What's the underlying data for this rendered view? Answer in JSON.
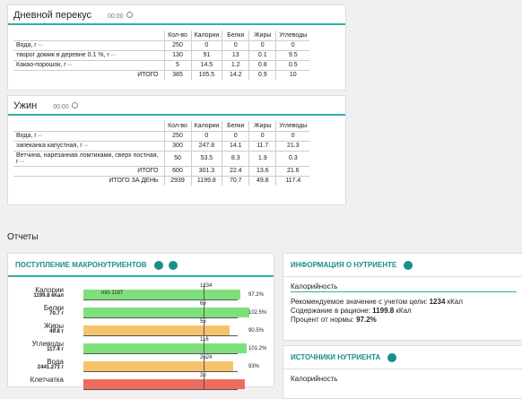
{
  "meals": [
    {
      "title": "Дневной перекус",
      "time": "00:00",
      "headers": [
        "Кол-во",
        "Калории",
        "Белки",
        "Жиры",
        "Углеводы"
      ],
      "rows": [
        [
          "Вода, г",
          250,
          0,
          0,
          0,
          0
        ],
        [
          "творог домик в деревне 0.1 %, г",
          130,
          91,
          13,
          0.1,
          9.5
        ],
        [
          "Какао-порошок, г",
          5,
          14.5,
          1.2,
          0.8,
          0.5
        ]
      ],
      "totals": [
        [
          "ИТОГО",
          385,
          105.5,
          14.2,
          0.9,
          10
        ]
      ]
    },
    {
      "title": "Ужин",
      "time": "00:00",
      "headers": [
        "Кол-во",
        "Калории",
        "Белки",
        "Жиры",
        "Углеводы"
      ],
      "rows": [
        [
          "Вода, г",
          250,
          0,
          0,
          0,
          0
        ],
        [
          "запеканка капустная, г",
          300,
          247.8,
          14.1,
          11.7,
          21.3
        ],
        [
          "Ветчина, нарезанная ломтиками, сверх постная, г",
          50,
          53.5,
          8.3,
          1.9,
          0.3
        ]
      ],
      "totals": [
        [
          "ИТОГО",
          600,
          301.3,
          22.4,
          13.6,
          21.6
        ],
        [
          "ИТОГО ЗА ДЕНЬ",
          2939,
          1199.8,
          70.7,
          49.8,
          117.4
        ]
      ]
    }
  ],
  "reports": {
    "title": "Отчеты",
    "macro": {
      "title": "ПОСТУПЛЕНИЕ МАКРОНУТРИЕНТОВ",
      "rows": [
        {
          "name": "Калории",
          "amount": "1199.8 кКал",
          "bar_label": "min 1187",
          "target": "1234",
          "percent": 97.2,
          "percent_label": "97.2%",
          "color": "#7ee07a"
        },
        {
          "name": "Белки",
          "amount": "70.7 г",
          "target": "69",
          "percent": 102.5,
          "percent_label": "102.5%",
          "color": "#7ee07a"
        },
        {
          "name": "Жиры",
          "amount": "49.8 г",
          "target": "55",
          "percent": 90.5,
          "percent_label": "90.5%",
          "color": "#f7c46c"
        },
        {
          "name": "Углеводы",
          "amount": "117.4 г",
          "target": "116",
          "percent": 101.2,
          "percent_label": "101.2%",
          "color": "#7ee07a"
        },
        {
          "name": "Вода",
          "amount": "2441.271 г",
          "target": "2624",
          "percent": 93,
          "percent_label": "93%",
          "color": "#f7c46c"
        },
        {
          "name": "Клетчатка",
          "target": "20",
          "color": "#ee6b5f"
        }
      ]
    },
    "info": {
      "title": "ИНФОРМАЦИЯ О НУТРИЕНТЕ",
      "nutrient": "Калорийность",
      "lines": [
        [
          "Рекомендуемое значение с учетом цели: ",
          "1234",
          " кКал"
        ],
        [
          "Содержание в рационе: ",
          "1199.8",
          " кКал"
        ],
        [
          "Процент от нормы: ",
          "97.2%"
        ]
      ]
    },
    "sources": {
      "title": "ИСТОЧНИКИ НУТРИЕНТА",
      "nutrient": "Калорийность"
    }
  }
}
